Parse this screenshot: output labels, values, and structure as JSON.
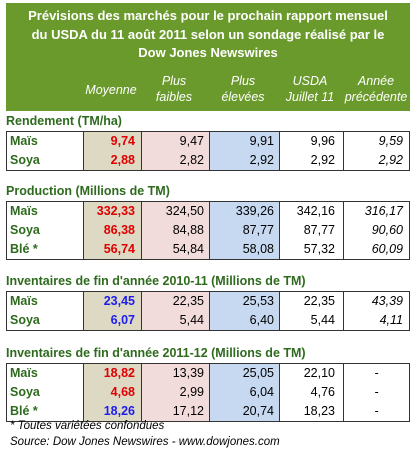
{
  "title_lines": [
    "Prévisions des marchés pour le prochain rapport mensuel",
    "du USDA du 11 août 2011 selon un sondage réalisé par le",
    "Dow Jones Newswires"
  ],
  "header": {
    "moyenne": "Moyenne",
    "low": [
      "Plus",
      "faibles"
    ],
    "high": [
      "Plus",
      "élevées"
    ],
    "usda": [
      "USDA",
      "Juillet 11"
    ],
    "prev": [
      "Année",
      "précédente"
    ]
  },
  "sections": [
    {
      "title": "Rendement (TM/ha)",
      "rows": [
        {
          "label": "Maïs",
          "avg": "9,74",
          "low": "9,47",
          "high": "9,91",
          "usda": "9,96",
          "prev": "9,59"
        },
        {
          "label": "Soya",
          "avg": "2,88",
          "low": "2,82",
          "high": "2,92",
          "usda": "2,92",
          "prev": "2,92"
        }
      ]
    },
    {
      "title": "Production (Millions de TM)",
      "rows": [
        {
          "label": "Maïs",
          "avg": "332,33",
          "low": "324,50",
          "high": "339,26",
          "usda": "342,16",
          "prev": "316,17"
        },
        {
          "label": "Soya",
          "avg": "86,38",
          "low": "84,88",
          "high": "87,77",
          "usda": "87,77",
          "prev": "90,60"
        },
        {
          "label": "Blé *",
          "avg": "56,74",
          "low": "54,84",
          "high": "58,08",
          "usda": "57,32",
          "prev": "60,09"
        }
      ]
    },
    {
      "title": "Inventaires de fin d'année 2010-11 (Millions de TM)",
      "rows": [
        {
          "label": "Maïs",
          "avg": "23,45",
          "low": "22,35",
          "high": "25,53",
          "usda": "22,35",
          "prev": "43,39"
        },
        {
          "label": "Soya",
          "avg": "6,07",
          "low": "5,44",
          "high": "6,40",
          "usda": "5,44",
          "prev": "4,11"
        }
      ]
    },
    {
      "title": "Inventaires de fin d'année 2011-12 (Millions de TM)",
      "rows": [
        {
          "label": "Maïs",
          "avg": "18,82",
          "low": "13,39",
          "high": "25,05",
          "usda": "22,10",
          "prev": "-"
        },
        {
          "label": "Soya",
          "avg": "4,68",
          "low": "2,99",
          "high": "6,04",
          "usda": "4,76",
          "prev": "-"
        },
        {
          "label": "Blé *",
          "avg": "18,26",
          "low": "17,12",
          "high": "20,74",
          "usda": "18,23",
          "prev": "-"
        }
      ]
    }
  ],
  "colors": {
    "header_green": "#6a9a2c",
    "label_green": "#2e6b1e",
    "below_usda": "#e00000",
    "above_usda": "#1d1df0"
  },
  "footnote": "* Toutes variétées confondues",
  "source": "Source: Dow Jones Newswires - www.dowjones.com"
}
